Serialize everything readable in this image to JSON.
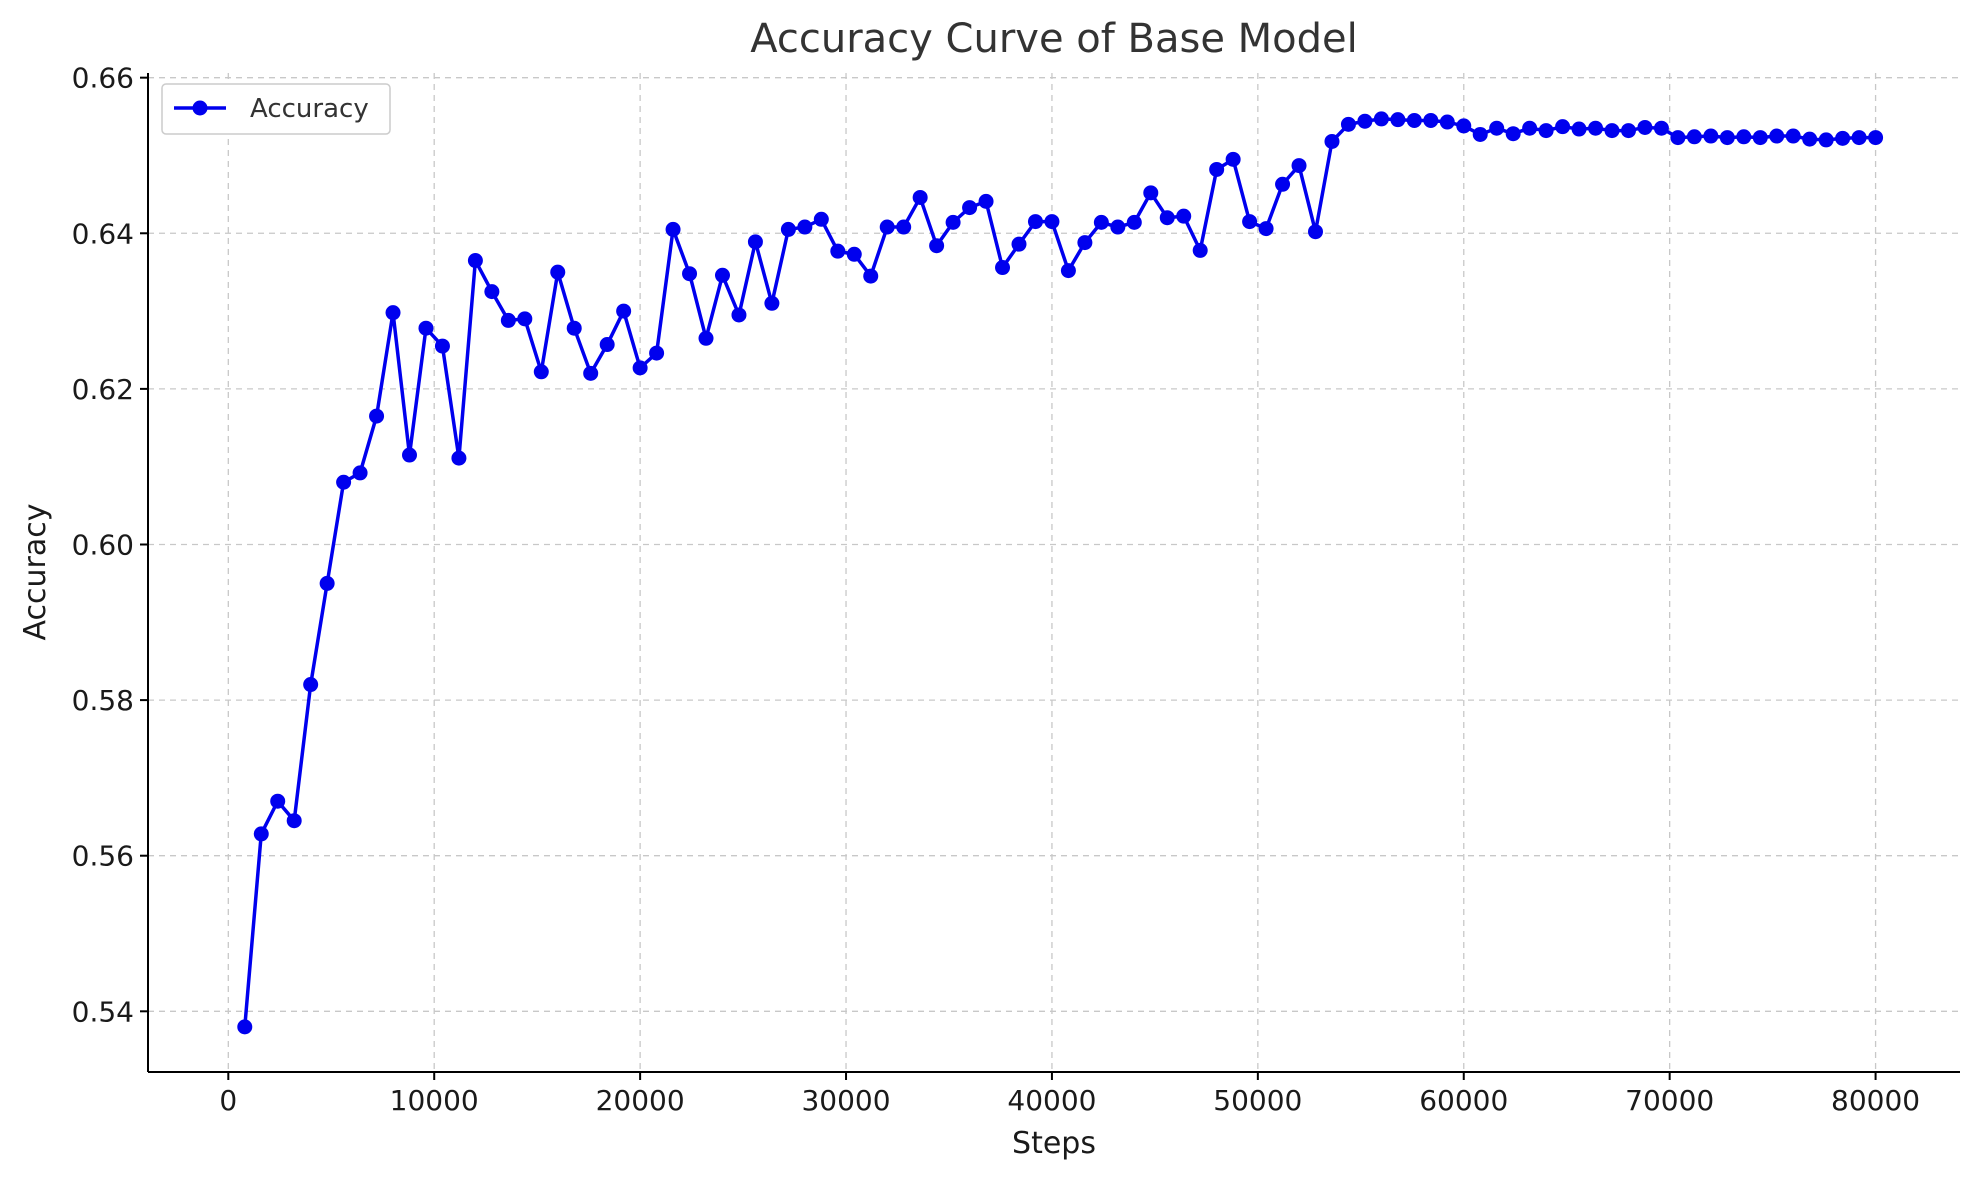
{
  "chart_data": {
    "type": "line",
    "title": "Accuracy Curve of Base Model",
    "xlabel": "Steps",
    "ylabel": "Accuracy",
    "xlim": [
      -3900,
      84100
    ],
    "ylim": [
      0.5322,
      0.6606
    ],
    "xticks": [
      0,
      10000,
      20000,
      30000,
      40000,
      50000,
      60000,
      70000,
      80000
    ],
    "xtick_labels": [
      "0",
      "10000",
      "20000",
      "30000",
      "40000",
      "50000",
      "60000",
      "70000",
      "80000"
    ],
    "yticks": [
      0.54,
      0.56,
      0.58,
      0.6,
      0.62,
      0.64,
      0.66
    ],
    "ytick_labels": [
      "0.54",
      "0.56",
      "0.58",
      "0.60",
      "0.62",
      "0.64",
      "0.66"
    ],
    "grid": true,
    "legend_position": "top-left",
    "color": "#0000ee",
    "series": [
      {
        "name": "Accuracy",
        "x": [
          800,
          1600,
          2400,
          3200,
          4000,
          4800,
          5600,
          6400,
          7200,
          8000,
          8800,
          9600,
          10400,
          11200,
          12000,
          12800,
          13600,
          14400,
          15200,
          16000,
          16800,
          17600,
          18400,
          19200,
          20000,
          20800,
          21600,
          22400,
          23200,
          24000,
          24800,
          25600,
          26400,
          27200,
          28000,
          28800,
          29600,
          30400,
          31200,
          32000,
          32800,
          33600,
          34400,
          35200,
          36000,
          36800,
          37600,
          38400,
          39200,
          40000,
          40800,
          41600,
          42400,
          43200,
          44000,
          44800,
          45600,
          46400,
          47200,
          48000,
          48800,
          49600,
          50400,
          51200,
          52000,
          52800,
          53600,
          54400,
          55200,
          56000,
          56800,
          57600,
          58400,
          59200,
          60000,
          60800,
          61600,
          62400,
          63200,
          64000,
          64800,
          65600,
          66400,
          67200,
          68000,
          68800,
          69600,
          70400,
          71200,
          72000,
          72800,
          73600,
          74400,
          75200,
          76000,
          76800,
          77600,
          78400,
          79200,
          80000
        ],
        "values": [
          0.538,
          0.5628,
          0.567,
          0.5645,
          0.582,
          0.595,
          0.608,
          0.6092,
          0.6165,
          0.6298,
          0.6115,
          0.6278,
          0.6255,
          0.6111,
          0.6365,
          0.6325,
          0.6288,
          0.629,
          0.6222,
          0.635,
          0.6278,
          0.622,
          0.6257,
          0.63,
          0.6227,
          0.6246,
          0.6405,
          0.6348,
          0.6265,
          0.6346,
          0.6295,
          0.6389,
          0.631,
          0.6405,
          0.6408,
          0.6418,
          0.6377,
          0.6373,
          0.6345,
          0.6408,
          0.6408,
          0.6446,
          0.6384,
          0.6414,
          0.6433,
          0.6441,
          0.6356,
          0.6386,
          0.6415,
          0.6415,
          0.6352,
          0.6388,
          0.6414,
          0.6408,
          0.6414,
          0.6452,
          0.642,
          0.6422,
          0.6378,
          0.6482,
          0.6495,
          0.6415,
          0.6406,
          0.6463,
          0.6487,
          0.6402,
          0.6518,
          0.654,
          0.6544,
          0.6547,
          0.6546,
          0.6545,
          0.6545,
          0.6543,
          0.6538,
          0.6527,
          0.6535,
          0.6528,
          0.6535,
          0.6532,
          0.6537,
          0.6534,
          0.6535,
          0.6532,
          0.6532,
          0.6536,
          0.6535,
          0.6523,
          0.6524,
          0.6525,
          0.6523,
          0.6524,
          0.6523,
          0.6525,
          0.6525,
          0.6521,
          0.652,
          0.6522,
          0.6523,
          0.6523
        ]
      }
    ]
  }
}
